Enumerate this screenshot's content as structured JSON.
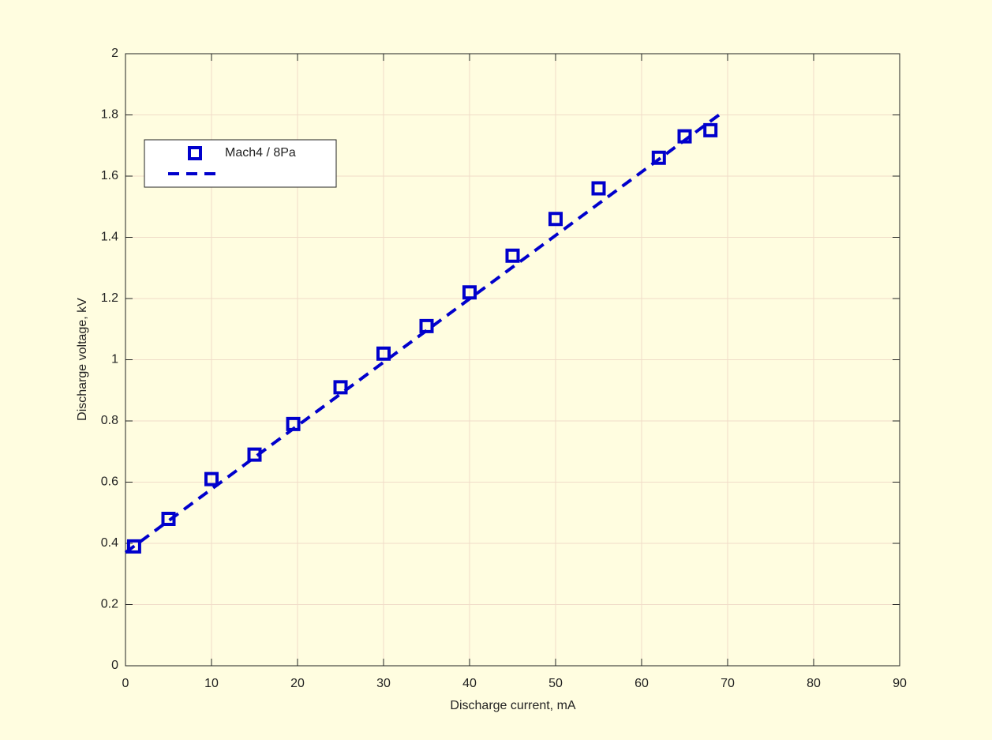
{
  "chart_data": {
    "type": "line",
    "xlabel": "Discharge current, mA",
    "ylabel": "Discharge voltage, kV",
    "xlim": [
      0,
      90
    ],
    "xticks": [
      0,
      10,
      20,
      30,
      40,
      50,
      60,
      70,
      80,
      90
    ],
    "ylim": [
      0,
      2
    ],
    "yticks": [
      0,
      0.2,
      0.4,
      0.6,
      0.8,
      1,
      1.2,
      1.4,
      1.6,
      1.8,
      2
    ],
    "grid": true,
    "legend": "northwest",
    "series": [
      {
        "name": "Mach4 / 8Pa",
        "color": "#0000cc",
        "marker": "square",
        "linestyle": "none",
        "x": [
          1,
          5,
          10,
          15,
          19.5,
          25,
          30,
          35,
          40,
          45,
          50,
          55,
          62,
          65,
          68
        ],
        "values": [
          0.39,
          0.48,
          0.61,
          0.69,
          0.79,
          0.91,
          1.02,
          1.11,
          1.22,
          1.34,
          1.46,
          1.56,
          1.66,
          1.73,
          1.75
        ]
      },
      {
        "color": "#0000cc",
        "marker": "none",
        "linestyle": "dashed",
        "x": [
          0,
          69
        ],
        "values": [
          0.37,
          1.8
        ]
      }
    ]
  }
}
